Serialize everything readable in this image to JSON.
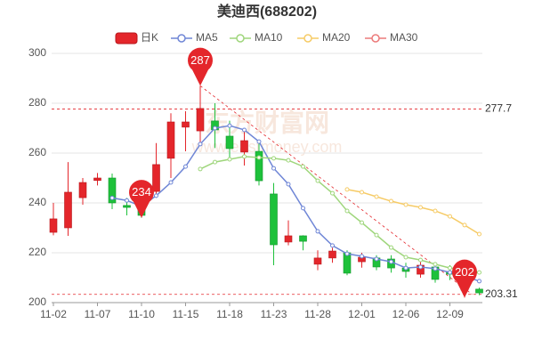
{
  "chart_data": {
    "type": "candlestick",
    "title": "美迪西(688202)",
    "watermark": "东方财富网",
    "watermark_sub": "www.eastmoney.com",
    "categories": [
      "11-02",
      null,
      null,
      "11-07",
      null,
      null,
      "11-10",
      null,
      null,
      "11-15",
      null,
      null,
      "11-18",
      null,
      null,
      "11-23",
      null,
      null,
      "11-28",
      null,
      null,
      "12-01",
      null,
      null,
      "12-06",
      null,
      null,
      "12-09",
      null,
      null
    ],
    "candles": {
      "name": "日K",
      "up_color": "#e4262b",
      "down_color": "#1ec13b",
      "open": [
        228.2,
        230.0,
        242.1,
        249.0,
        250.0,
        239.0,
        238.0,
        244.6,
        257.9,
        270.4,
        268.9,
        272.9,
        266.8,
        260.4,
        260.7,
        243.6,
        224.3,
        226.8,
        215.4,
        217.9,
        220.0,
        216.4,
        217.9,
        217.5,
        213.9,
        211.4,
        214.3,
        212.5,
        205.0,
        205.4
      ],
      "close": [
        233.6,
        244.3,
        248.2,
        250.0,
        240.0,
        238.2,
        235.0,
        255.4,
        272.5,
        272.5,
        277.9,
        269.3,
        261.8,
        265.0,
        248.9,
        223.2,
        226.8,
        224.6,
        217.9,
        220.7,
        211.8,
        218.2,
        214.3,
        213.9,
        212.5,
        215.0,
        209.3,
        211.4,
        208.0,
        203.9
      ],
      "high": [
        240.0,
        256.4,
        250.0,
        252.0,
        251.8,
        242.0,
        241.0,
        264.0,
        276.0,
        276.8,
        287.0,
        280.0,
        273.0,
        269.0,
        264.0,
        248.0,
        233.0,
        227.0,
        221.0,
        222.0,
        221.0,
        220.0,
        219.0,
        219.0,
        216.0,
        217.0,
        216.0,
        215.0,
        212.0,
        206.0
      ],
      "low": [
        227.0,
        226.8,
        239.3,
        247.0,
        237.5,
        235.0,
        234.0,
        242.0,
        250.0,
        260.7,
        263.0,
        262.0,
        258.0,
        255.0,
        247.0,
        215.0,
        223.0,
        221.0,
        213.0,
        216.0,
        211.0,
        214.0,
        213.0,
        212.0,
        210.0,
        210.0,
        208.0,
        209.0,
        202.0,
        203.0
      ]
    },
    "series": [
      {
        "name": "MA5",
        "color": "#6f86d6",
        "values": [
          null,
          null,
          null,
          null,
          242.0,
          241.0,
          238.6,
          242.9,
          248.2,
          254.6,
          263.6,
          270.0,
          271.0,
          269.3,
          264.6,
          253.9,
          247.5,
          237.9,
          228.6,
          222.9,
          219.6,
          218.6,
          217.5,
          216.4,
          213.9,
          214.3,
          213.6,
          212.1,
          210.7,
          208.6
        ]
      },
      {
        "name": "MA10",
        "color": "#9fd67c",
        "values": [
          null,
          null,
          null,
          null,
          null,
          null,
          null,
          null,
          null,
          null,
          253.6,
          256.4,
          257.5,
          258.6,
          258.2,
          257.9,
          257.1,
          254.6,
          248.9,
          243.9,
          236.8,
          232.1,
          227.1,
          222.1,
          218.2,
          217.1,
          215.4,
          213.9,
          213.2,
          212.1
        ]
      },
      {
        "name": "MA20",
        "color": "#f6cb66",
        "values": [
          null,
          null,
          null,
          null,
          null,
          null,
          null,
          null,
          null,
          null,
          null,
          null,
          null,
          null,
          null,
          null,
          null,
          null,
          null,
          null,
          245.4,
          244.3,
          242.5,
          240.7,
          239.3,
          238.2,
          236.8,
          234.6,
          231.1,
          227.5
        ]
      },
      {
        "name": "MA30",
        "color": "#ec7a7a",
        "values": [
          null,
          null,
          null,
          null,
          null,
          null,
          null,
          null,
          null,
          null,
          null,
          null,
          null,
          null,
          null,
          null,
          null,
          null,
          null,
          null,
          null,
          null,
          null,
          null,
          null,
          null,
          null,
          null,
          null,
          null
        ]
      }
    ],
    "high_markers": [
      287
    ],
    "low_markers": [
      234,
      202
    ],
    "ref_lines": [
      277.7,
      203.31
    ],
    "ylim": [
      200,
      300
    ],
    "yticks": [
      200,
      220,
      240,
      260,
      280,
      300
    ],
    "grid": true
  }
}
